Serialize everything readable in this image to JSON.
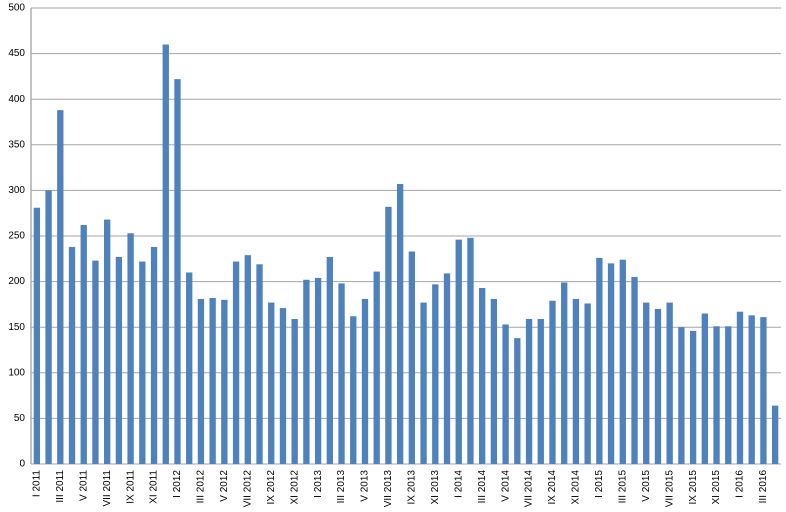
{
  "chart_data": {
    "type": "bar",
    "categories": [
      "I 2011",
      null,
      "III 2011",
      null,
      "V 2011",
      null,
      "VII 2011",
      null,
      "IX 2011",
      null,
      "XI 2011",
      null,
      "I 2012",
      null,
      "III 2012",
      null,
      "V 2012",
      null,
      "VII 2012",
      null,
      "IX 2012",
      null,
      "XI 2012",
      null,
      "I 2013",
      null,
      "III 2013",
      null,
      "V 2013",
      null,
      "VII 2013",
      null,
      "IX 2013",
      null,
      "XI 2013",
      null,
      "I 2014",
      null,
      "III 2014",
      null,
      "V 2014",
      null,
      "VII 2014",
      null,
      "IX 2014",
      null,
      "XI 2014",
      null,
      "I 2015",
      null,
      "III 2015",
      null,
      "V 2015",
      null,
      "VII 2015",
      null,
      "IX 2015",
      null,
      "XI 2015",
      null,
      "I 2016",
      null,
      "III 2016",
      null
    ],
    "values": [
      281,
      300,
      388,
      238,
      262,
      223,
      268,
      227,
      253,
      222,
      238,
      460,
      422,
      210,
      181,
      182,
      180,
      222,
      229,
      219,
      177,
      171,
      159,
      202,
      204,
      227,
      198,
      162,
      181,
      211,
      282,
      307,
      233,
      177,
      197,
      209,
      246,
      248,
      193,
      181,
      153,
      138,
      159,
      159,
      179,
      199,
      181,
      176,
      226,
      220,
      224,
      205,
      177,
      170,
      177,
      150,
      146,
      165,
      151,
      151,
      167,
      163,
      161,
      64
    ],
    "color": "#4f81bd",
    "ylim": [
      0,
      500
    ],
    "yticks": [
      0,
      50,
      100,
      150,
      200,
      250,
      300,
      350,
      400,
      450,
      500
    ],
    "grid": true
  }
}
